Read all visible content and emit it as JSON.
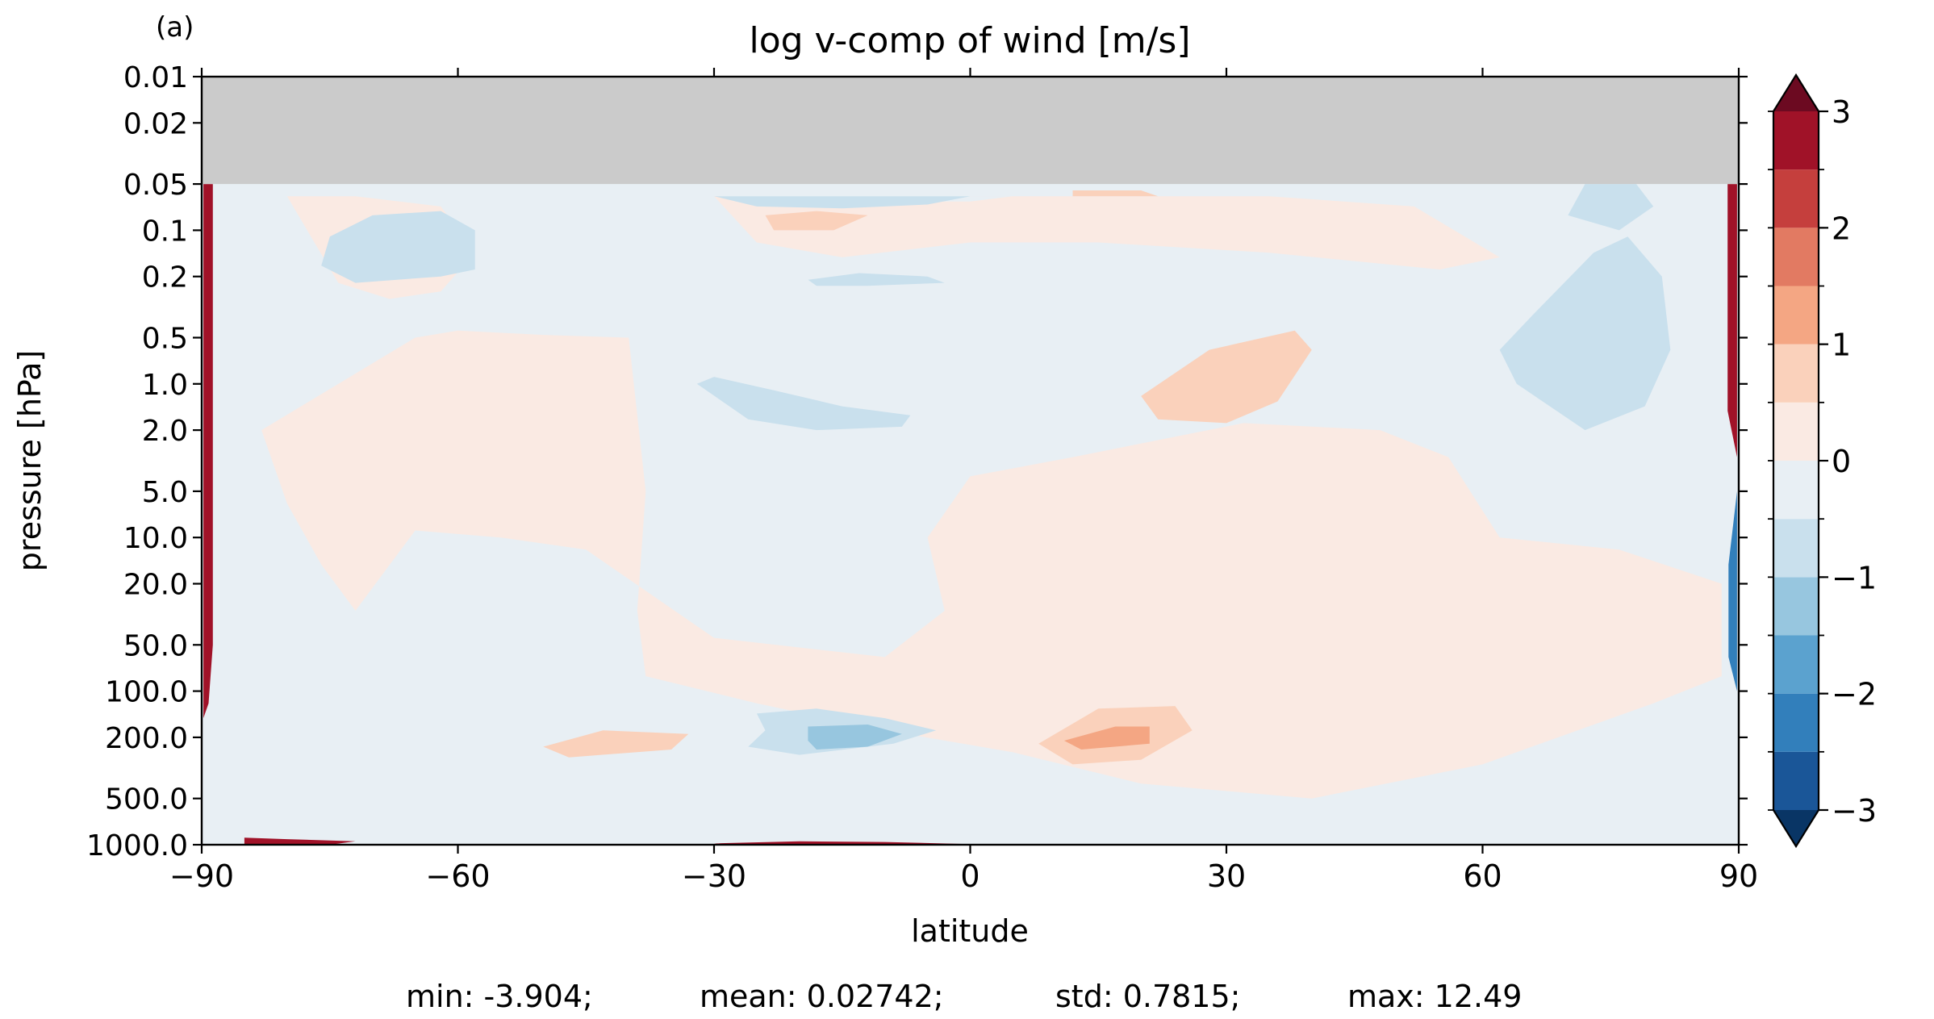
{
  "panel_label": "(a)",
  "chart_data": {
    "type": "heatmap",
    "title": "log v-comp of wind [m/s]",
    "xlabel": "latitude",
    "ylabel": "pressure [hPa]",
    "x_ticks": [
      -90,
      -60,
      -30,
      0,
      30,
      60,
      90
    ],
    "x_tick_labels": [
      "−90",
      "−60",
      "−30",
      "0",
      "30",
      "60",
      "90"
    ],
    "xlim": [
      -90,
      90
    ],
    "y_scale": "log",
    "y_ticks": [
      0.01,
      0.02,
      0.05,
      0.1,
      0.2,
      0.5,
      1.0,
      2.0,
      5.0,
      10.0,
      20.0,
      50.0,
      100.0,
      200.0,
      500.0,
      1000.0
    ],
    "y_tick_labels": [
      "0.01",
      "0.02",
      "0.05",
      "0.1",
      "0.2",
      "0.5",
      "1.0",
      "2.0",
      "5.0",
      "10.0",
      "20.0",
      "50.0",
      "100.0",
      "200.0",
      "500.0",
      "1000.0"
    ],
    "ylim": [
      1000,
      0.01
    ],
    "no_data_above_hpa": 0.05,
    "no_data_color": "#cbcbcb",
    "colorbar": {
      "levels": [
        -3,
        -2.5,
        -2,
        -1.5,
        -1,
        -0.5,
        0,
        0.5,
        1,
        1.5,
        2,
        2.5,
        3
      ],
      "tick_values": [
        -3,
        -2,
        -1,
        0,
        1,
        2,
        3
      ],
      "tick_labels": [
        "−3",
        "−2",
        "−1",
        "0",
        "1",
        "2",
        "3"
      ],
      "colors": [
        "#1a5698",
        "#327fbb",
        "#5ba2cf",
        "#97c6df",
        "#c9e0ed",
        "#e8eff4",
        "#faeae3",
        "#fad1bb",
        "#f4a683",
        "#e27a62",
        "#c53f3d",
        "#a01228"
      ],
      "extend_low_color": "#093565",
      "extend_high_color": "#6c0a21"
    },
    "regions": [
      {
        "value": 0.25,
        "polygon": [
          [
            -65,
            0.5
          ],
          [
            -60,
            0.45
          ],
          [
            -50,
            0.48
          ],
          [
            -40,
            0.5
          ],
          [
            -38,
            5
          ],
          [
            -39,
            30
          ],
          [
            -38,
            80
          ],
          [
            -25,
            120
          ],
          [
            -10,
            180
          ],
          [
            5,
            250
          ],
          [
            20,
            400
          ],
          [
            40,
            500
          ],
          [
            60,
            300
          ],
          [
            80,
            120
          ],
          [
            88,
            80
          ],
          [
            88,
            20
          ],
          [
            76,
            12
          ],
          [
            62,
            10
          ],
          [
            56,
            3
          ],
          [
            48,
            2
          ],
          [
            32,
            1.8
          ],
          [
            12,
            3
          ],
          [
            0,
            4
          ],
          [
            -5,
            10
          ],
          [
            -3,
            30
          ],
          [
            -10,
            60
          ],
          [
            -30,
            45
          ],
          [
            -45,
            12
          ],
          [
            -55,
            10
          ],
          [
            -65,
            9
          ],
          [
            -72,
            30
          ],
          [
            -76,
            15
          ],
          [
            -80,
            6
          ],
          [
            -83,
            2
          ]
        ]
      },
      {
        "value": 0.25,
        "polygon": [
          [
            -30,
            0.06
          ],
          [
            -25,
            0.12
          ],
          [
            -15,
            0.15
          ],
          [
            0,
            0.12
          ],
          [
            15,
            0.12
          ],
          [
            35,
            0.14
          ],
          [
            55,
            0.18
          ],
          [
            62,
            0.15
          ],
          [
            52,
            0.07
          ],
          [
            35,
            0.06
          ],
          [
            15,
            0.06
          ],
          [
            -10,
            0.06
          ]
        ]
      },
      {
        "value": 0.25,
        "polygon": [
          [
            -80,
            0.06
          ],
          [
            -74,
            0.22
          ],
          [
            -68,
            0.28
          ],
          [
            -62,
            0.25
          ],
          [
            -58,
            0.14
          ],
          [
            -62,
            0.07
          ],
          [
            -72,
            0.06
          ]
        ]
      },
      {
        "value": -0.25,
        "polygon": [
          [
            -30,
            0.06
          ],
          [
            -20,
            0.065
          ],
          [
            0,
            0.065
          ],
          [
            5,
            0.06
          ]
        ]
      },
      {
        "value": -0.75,
        "polygon": [
          [
            -75,
            0.11
          ],
          [
            -70,
            0.08
          ],
          [
            -62,
            0.075
          ],
          [
            -58,
            0.1
          ],
          [
            -58,
            0.18
          ],
          [
            -62,
            0.2
          ],
          [
            -72,
            0.22
          ],
          [
            -76,
            0.17
          ]
        ]
      },
      {
        "value": -0.75,
        "polygon": [
          [
            -30,
            0.06
          ],
          [
            -25,
            0.07
          ],
          [
            -15,
            0.072
          ],
          [
            -5,
            0.068
          ],
          [
            0,
            0.06
          ]
        ]
      },
      {
        "value": -0.75,
        "polygon": [
          [
            -19,
            0.21
          ],
          [
            -13,
            0.19
          ],
          [
            -5,
            0.2
          ],
          [
            -3,
            0.22
          ],
          [
            -12,
            0.23
          ],
          [
            -18,
            0.23
          ]
        ]
      },
      {
        "value": -0.75,
        "polygon": [
          [
            -32,
            1.0
          ],
          [
            -30,
            0.9
          ],
          [
            -23,
            1.1
          ],
          [
            -15,
            1.4
          ],
          [
            -7,
            1.6
          ],
          [
            -8,
            1.9
          ],
          [
            -18,
            2.0
          ],
          [
            -26,
            1.7
          ]
        ]
      },
      {
        "value": -0.75,
        "polygon": [
          [
            72,
            0.05
          ],
          [
            78,
            0.05
          ],
          [
            80,
            0.07
          ],
          [
            76,
            0.1
          ],
          [
            70,
            0.08
          ]
        ]
      },
      {
        "value": -0.75,
        "polygon": [
          [
            77,
            0.11
          ],
          [
            81,
            0.2
          ],
          [
            82,
            0.6
          ],
          [
            79,
            1.4
          ],
          [
            72,
            2.0
          ],
          [
            64,
            1.0
          ],
          [
            62,
            0.6
          ],
          [
            66,
            0.35
          ],
          [
            73,
            0.14
          ]
        ]
      },
      {
        "value": -0.75,
        "polygon": [
          [
            -25,
            140
          ],
          [
            -18,
            130
          ],
          [
            -10,
            150
          ],
          [
            -4,
            180
          ],
          [
            -9,
            220
          ],
          [
            -20,
            260
          ],
          [
            -26,
            230
          ],
          [
            -24,
            180
          ]
        ]
      },
      {
        "value": -1.25,
        "polygon": [
          [
            -19,
            170
          ],
          [
            -12,
            165
          ],
          [
            -8,
            190
          ],
          [
            -12,
            230
          ],
          [
            -18,
            240
          ],
          [
            -19,
            210
          ]
        ]
      },
      {
        "value": 0.75,
        "polygon": [
          [
            -24,
            0.08
          ],
          [
            -18,
            0.075
          ],
          [
            -12,
            0.08
          ],
          [
            -16,
            0.1
          ],
          [
            -23,
            0.1
          ]
        ]
      },
      {
        "value": 0.75,
        "polygon": [
          [
            12,
            0.055
          ],
          [
            20,
            0.055
          ],
          [
            22,
            0.06
          ],
          [
            12,
            0.06
          ]
        ]
      },
      {
        "value": 0.75,
        "polygon": [
          [
            20,
            1.2
          ],
          [
            28,
            0.6
          ],
          [
            38,
            0.45
          ],
          [
            40,
            0.6
          ],
          [
            36,
            1.3
          ],
          [
            30,
            1.8
          ],
          [
            22,
            1.7
          ]
        ]
      },
      {
        "value": 0.75,
        "polygon": [
          [
            -50,
            230
          ],
          [
            -43,
            180
          ],
          [
            -33,
            190
          ],
          [
            -35,
            240
          ],
          [
            -47,
            270
          ]
        ]
      },
      {
        "value": 0.75,
        "polygon": [
          [
            8,
            220
          ],
          [
            15,
            130
          ],
          [
            24,
            125
          ],
          [
            26,
            180
          ],
          [
            20,
            280
          ],
          [
            12,
            300
          ]
        ]
      },
      {
        "value": 1.25,
        "polygon": [
          [
            11,
            210
          ],
          [
            17,
            170
          ],
          [
            21,
            170
          ],
          [
            21,
            220
          ],
          [
            13,
            240
          ]
        ]
      },
      {
        "value": 2.75,
        "polygon": [
          [
            -89.8,
            0.05
          ],
          [
            -88.7,
            0.05
          ],
          [
            -88.7,
            50
          ],
          [
            -89.2,
            120
          ],
          [
            -89.8,
            150
          ]
        ]
      },
      {
        "value": 2.75,
        "polygon": [
          [
            88.7,
            0.05
          ],
          [
            89.8,
            0.05
          ],
          [
            89.8,
            3
          ],
          [
            88.7,
            1.5
          ]
        ]
      },
      {
        "value": 2.75,
        "polygon": [
          [
            -85,
            900
          ],
          [
            -80,
            920
          ],
          [
            -72,
            950
          ],
          [
            -75,
            1000
          ],
          [
            -85,
            1000
          ]
        ]
      },
      {
        "value": 2.75,
        "polygon": [
          [
            -30,
            980
          ],
          [
            -20,
            950
          ],
          [
            -10,
            960
          ],
          [
            0,
            990
          ],
          [
            -28,
            1000
          ]
        ]
      },
      {
        "value": -2.25,
        "polygon": [
          [
            89.8,
            5
          ],
          [
            88.8,
            15
          ],
          [
            88.8,
            60
          ],
          [
            89.8,
            100
          ]
        ]
      },
      {
        "value": -0.25,
        "polygon": [
          [
            -90,
            1000
          ],
          [
            -86,
            1000
          ],
          [
            -88,
            700
          ],
          [
            -90,
            700
          ]
        ]
      }
    ]
  },
  "stats": {
    "min": "min: -3.904;",
    "mean": "mean: 0.02742;",
    "std": "std: 0.7815;",
    "max": "max: 12.49"
  }
}
